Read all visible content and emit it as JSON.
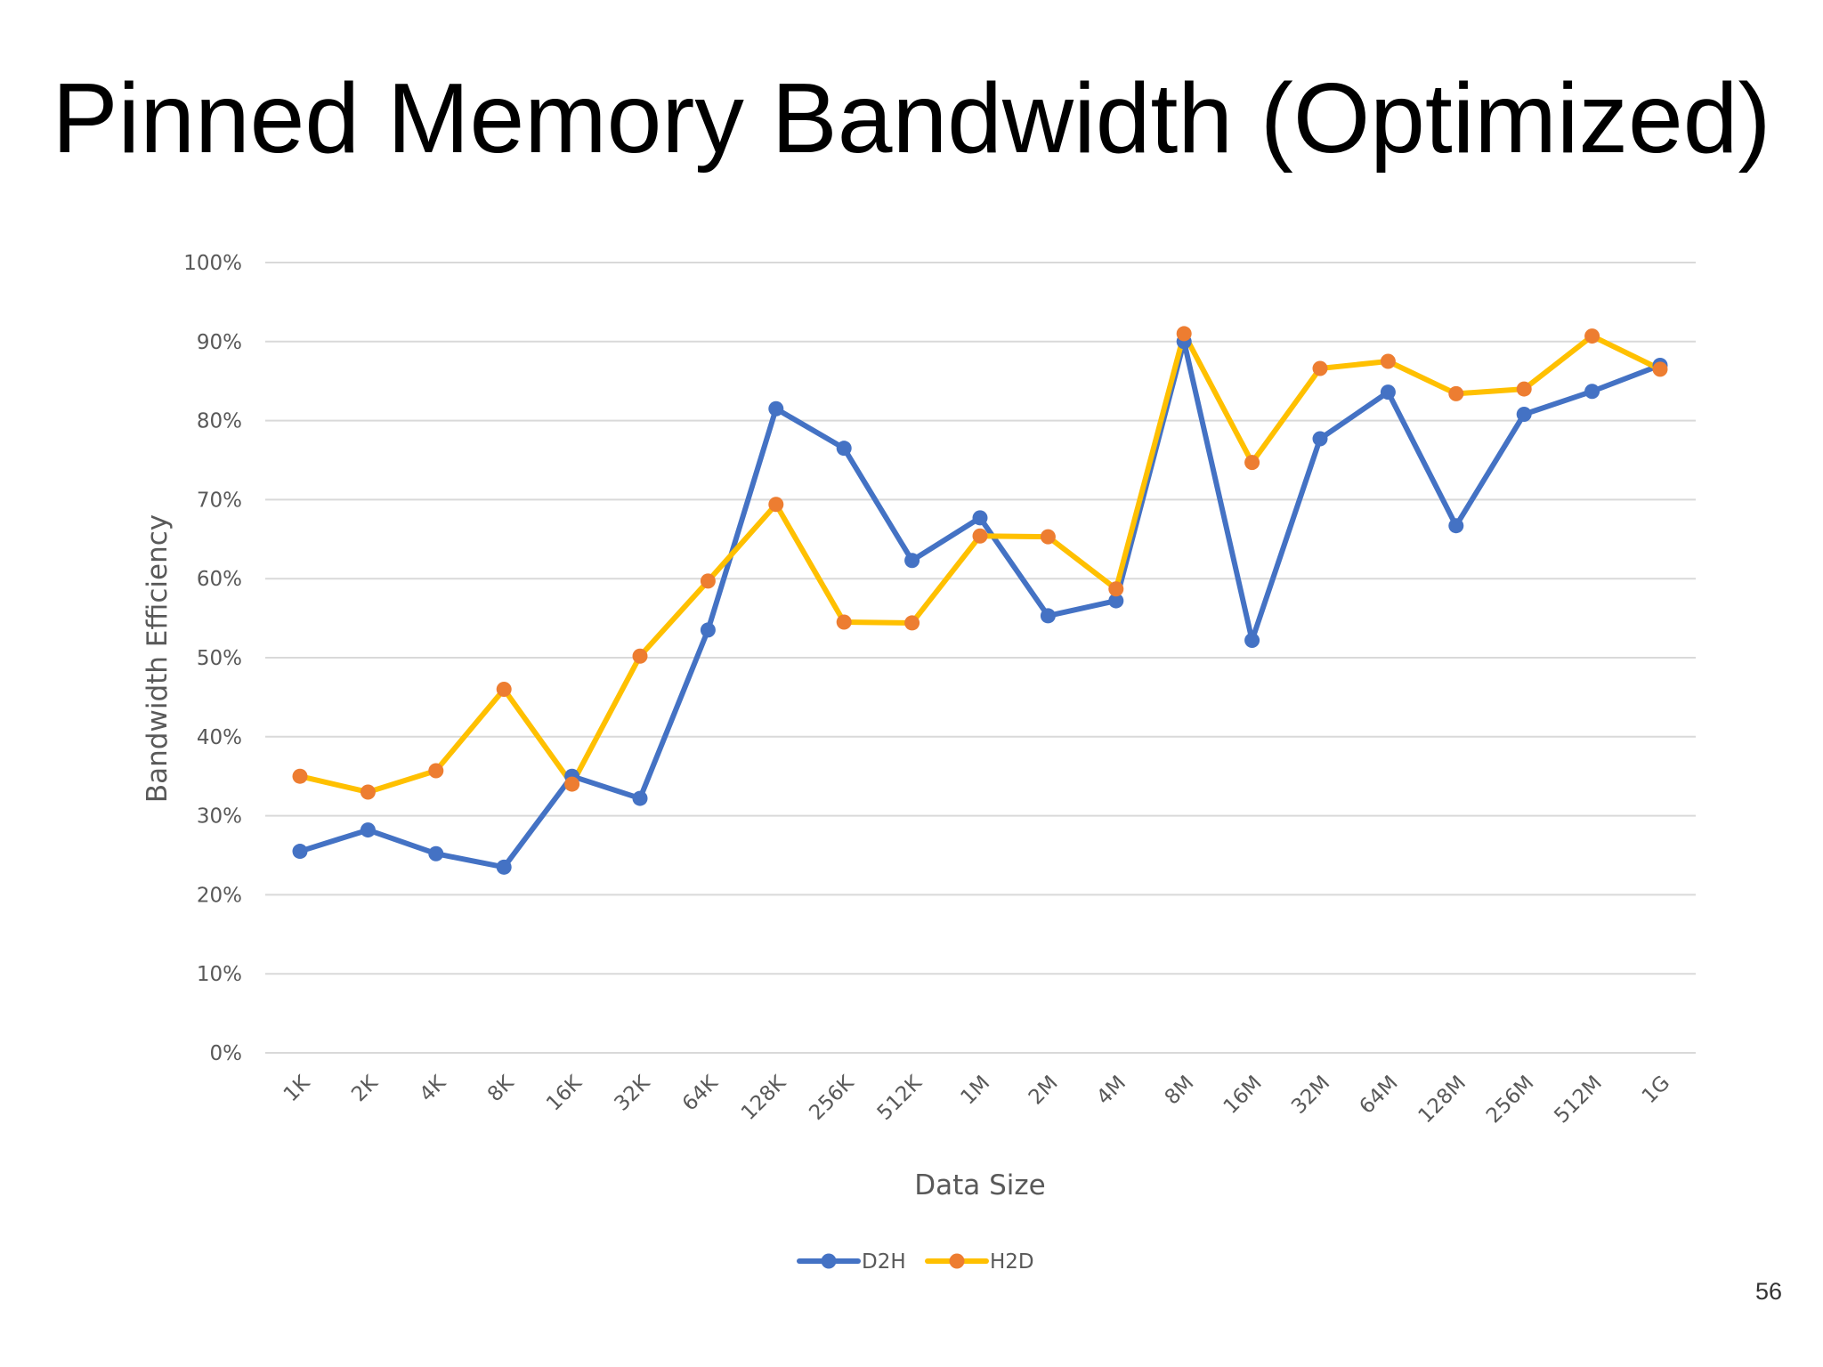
{
  "slide": {
    "title": "Pinned Memory Bandwidth (Optimized)",
    "page_number": "56"
  },
  "colors": {
    "d2h": "#4472C4",
    "h2d_line": "#FFC000",
    "h2d_marker": "#ED7D31",
    "grid": "#D9D9D9",
    "text": "#595959"
  },
  "chart_data": {
    "type": "line",
    "title": "",
    "xlabel": "Data Size",
    "ylabel": "Bandwidth Efficiency",
    "categories": [
      "1K",
      "2K",
      "4K",
      "8K",
      "16K",
      "32K",
      "64K",
      "128K",
      "256K",
      "512K",
      "1M",
      "2M",
      "4M",
      "8M",
      "16M",
      "32M",
      "64M",
      "128M",
      "256M",
      "512M",
      "1G"
    ],
    "yticks": [
      "0%",
      "10%",
      "20%",
      "30%",
      "40%",
      "50%",
      "60%",
      "70%",
      "80%",
      "90%",
      "100%"
    ],
    "ylim": [
      0,
      100
    ],
    "grid": true,
    "legend_position": "bottom",
    "series": [
      {
        "name": "D2H",
        "color": "#4472C4",
        "marker_color": "#4472C4",
        "values": [
          25.5,
          28.2,
          25.2,
          23.5,
          35.0,
          32.2,
          53.5,
          81.5,
          76.5,
          62.3,
          67.7,
          55.3,
          57.2,
          90.0,
          52.2,
          77.7,
          83.6,
          66.7,
          80.8,
          83.7,
          87.0
        ]
      },
      {
        "name": "H2D",
        "color": "#FFC000",
        "marker_color": "#ED7D31",
        "values": [
          35.0,
          33.0,
          35.7,
          46.0,
          34.0,
          50.2,
          59.7,
          69.4,
          54.5,
          54.4,
          65.4,
          65.3,
          58.7,
          91.0,
          74.7,
          86.6,
          87.5,
          83.4,
          84.0,
          90.7,
          86.5
        ]
      }
    ]
  }
}
